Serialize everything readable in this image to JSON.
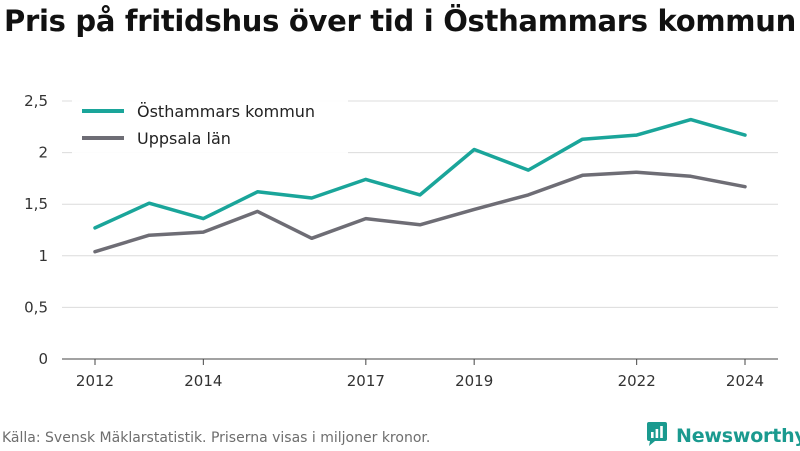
{
  "title": "Pris på fritidshus över tid i Östhammars kommun",
  "source": "Källa: Svensk Mäklarstatistik. Priserna visas i miljoner kronor.",
  "brand": {
    "name": "Newsworthy",
    "icon": "newsworthy-logo-icon",
    "color": "#1a9a8f"
  },
  "chart_data": {
    "type": "line",
    "title": "Pris på fritidshus över tid i Östhammars kommun",
    "xlabel": "",
    "ylabel": "",
    "x": [
      2012,
      2013,
      2014,
      2015,
      2016,
      2017,
      2018,
      2019,
      2020,
      2021,
      2022,
      2023,
      2024
    ],
    "x_ticks": [
      "2012",
      "2014",
      "2017",
      "2019",
      "2022",
      "2024"
    ],
    "y_ticks": [
      "0",
      "0,5",
      "1",
      "1,5",
      "2",
      "2,5"
    ],
    "ylim": [
      0,
      2.5
    ],
    "grid": true,
    "legend_position": "top-left",
    "series": [
      {
        "name": "Östhammars kommun",
        "color": "#1aa59a",
        "values": [
          1.27,
          1.51,
          1.36,
          1.62,
          1.56,
          1.74,
          1.59,
          2.03,
          1.83,
          2.13,
          2.17,
          2.32,
          2.17
        ]
      },
      {
        "name": "Uppsala län",
        "color": "#6e6d75",
        "values": [
          1.04,
          1.2,
          1.23,
          1.43,
          1.17,
          1.36,
          1.3,
          1.45,
          1.59,
          1.78,
          1.81,
          1.77,
          1.67
        ]
      }
    ]
  }
}
